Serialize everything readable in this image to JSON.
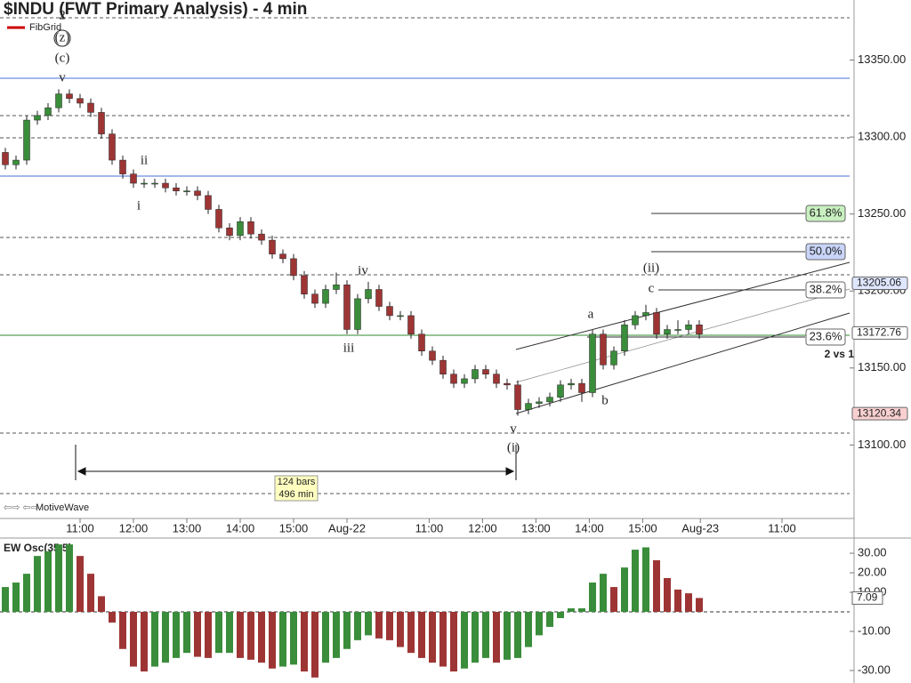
{
  "chart_data": [
    {
      "type": "candlestick",
      "title": "$INDU (FWT Primary Analysis) - 4 min",
      "legend": "FibGrid",
      "footer": "MotiveWave",
      "xlim": [
        -0.5,
        79
      ],
      "xticks": [
        {
          "value": 7,
          "label": "11:00"
        },
        {
          "value": 12,
          "label": "12:00"
        },
        {
          "value": 17,
          "label": "13:00"
        },
        {
          "value": 22,
          "label": "14:00"
        },
        {
          "value": 27,
          "label": "15:00"
        },
        {
          "value": 32,
          "label": "Aug-22"
        },
        {
          "value": 39.7,
          "label": "11:00"
        },
        {
          "value": 44.7,
          "label": "12:00"
        },
        {
          "value": 49.7,
          "label": "13:00"
        },
        {
          "value": 54.7,
          "label": "14:00"
        },
        {
          "value": 59.7,
          "label": "15:00"
        },
        {
          "value": 65.1,
          "label": "Aug-23"
        },
        {
          "value": 72.75,
          "label": "11:00"
        }
      ],
      "ylim": [
        13054,
        13389
      ],
      "yticks": [
        {
          "value": 13100,
          "label": "13100.00"
        },
        {
          "value": 13150,
          "label": "13150.00"
        },
        {
          "value": 13200,
          "label": "13200.00"
        },
        {
          "value": 13250,
          "label": "13250.00"
        },
        {
          "value": 13300,
          "label": "13300.00"
        },
        {
          "value": 13350,
          "label": "13350.00"
        }
      ],
      "open": [
        13290,
        13282,
        13285,
        13311,
        13314,
        13319,
        13328,
        13325,
        13322,
        13316,
        13302,
        13285,
        13276,
        13270,
        13270,
        13270,
        13267,
        13265,
        13265,
        13262,
        13253,
        13241,
        13236,
        13245,
        13237,
        13233,
        13224,
        13221,
        13210,
        13198,
        13192,
        13201,
        13204,
        13175,
        13195,
        13201,
        13190,
        13184,
        13184,
        13172,
        13161,
        13155,
        13146,
        13140,
        13143,
        13149,
        13146,
        13140,
        13139,
        13123,
        13127,
        13128,
        13131,
        13139,
        13140,
        13134,
        13172,
        13152,
        13161,
        13178,
        13184,
        13186,
        13172,
        13175,
        13175,
        13178
      ],
      "high": [
        13293,
        13288,
        13314,
        13317,
        13322,
        13331,
        13331,
        13328,
        13325,
        13319,
        13305,
        13288,
        13279,
        13273,
        13273,
        13273,
        13270,
        13268,
        13268,
        13265,
        13256,
        13244,
        13248,
        13248,
        13240,
        13236,
        13227,
        13224,
        13213,
        13201,
        13204,
        13212,
        13207,
        13198,
        13206,
        13204,
        13193,
        13187,
        13187,
        13175,
        13164,
        13158,
        13149,
        13146,
        13152,
        13152,
        13149,
        13143,
        13142,
        13130,
        13131,
        13134,
        13142,
        13143,
        13143,
        13175,
        13175,
        13164,
        13181,
        13187,
        13191,
        13189,
        13178,
        13181,
        13181,
        13181
      ],
      "low": [
        13279,
        13279,
        13282,
        13308,
        13311,
        13316,
        13322,
        13319,
        13313,
        13299,
        13282,
        13273,
        13267,
        13267,
        13267,
        13264,
        13262,
        13262,
        13259,
        13250,
        13238,
        13233,
        13233,
        13234,
        13230,
        13221,
        13218,
        13207,
        13195,
        13189,
        13189,
        13198,
        13172,
        13172,
        13192,
        13187,
        13181,
        13181,
        13169,
        13158,
        13152,
        13143,
        13137,
        13137,
        13140,
        13143,
        13137,
        13136,
        13119,
        13120,
        13124,
        13125,
        13128,
        13136,
        13128,
        13131,
        13149,
        13149,
        13158,
        13175,
        13181,
        13169,
        13169,
        13172,
        13172,
        13169
      ],
      "close": [
        13282,
        13285,
        13311,
        13314,
        13319,
        13328,
        13325,
        13322,
        13316,
        13302,
        13285,
        13276,
        13270,
        13270,
        13270,
        13267,
        13265,
        13265,
        13262,
        13253,
        13241,
        13236,
        13245,
        13237,
        13233,
        13224,
        13221,
        13210,
        13198,
        13192,
        13201,
        13204,
        13175,
        13195,
        13201,
        13190,
        13184,
        13184,
        13172,
        13161,
        13155,
        13146,
        13140,
        13143,
        13149,
        13146,
        13140,
        13139,
        13123,
        13127,
        13128,
        13131,
        13139,
        13140,
        13134,
        13172,
        13152,
        13161,
        13178,
        13184,
        13186,
        13172,
        13175,
        13175,
        13178,
        13172
      ],
      "up_color": "#3a8d3a",
      "down_color": "#9e3535",
      "price_tags": [
        13205.06,
        13172.76,
        13120.34
      ],
      "fib_labels": [
        "61.8%",
        "50.0%",
        "38.2%",
        "23.6%"
      ],
      "wave_labels": [
        "2",
        "(z)",
        "(c)",
        "v",
        "ii",
        "i",
        "iv",
        "iii",
        "v",
        "(i)",
        "a",
        "b",
        "(ii)",
        "c"
      ],
      "note": "2 vs 1",
      "measure": [
        "124 bars",
        "496 min"
      ]
    },
    {
      "type": "bar",
      "title": "EW Osc(35,5)",
      "values": [
        12.7,
        15,
        19.5,
        28.6,
        31,
        34.5,
        34.5,
        28.6,
        19.5,
        8,
        -5.5,
        -19,
        -28,
        -30.5,
        -28,
        -26,
        -23.6,
        -21,
        -23,
        -23.6,
        -21,
        -21,
        -23.6,
        -24.5,
        -26,
        -29,
        -28,
        -27,
        -30.5,
        -33.6,
        -26,
        -23.6,
        -19,
        -14.5,
        -12,
        -13.6,
        -14.5,
        -18,
        -21,
        -23.6,
        -26,
        -28,
        -30.5,
        -29,
        -26,
        -23.6,
        -26,
        -24.5,
        -23.6,
        -18,
        -12,
        -7.7,
        -3.2,
        1.8,
        1.8,
        15,
        19.5,
        12.7,
        22.7,
        31.8,
        33,
        26.4,
        17.3,
        11.4,
        9.5,
        7.09
      ],
      "ylim": [
        -36.4,
        36.4
      ],
      "yticks": [
        {
          "value": 30,
          "label": "30.00"
        },
        {
          "value": 20,
          "label": "20.00"
        },
        {
          "value": 10,
          "label": "10.00"
        },
        {
          "value": -10,
          "label": "-10.00"
        },
        {
          "value": -30,
          "label": "-30.00"
        }
      ],
      "last_value": 7.09,
      "up_color": "#3a8d3a",
      "down_color": "#9e3535"
    }
  ]
}
